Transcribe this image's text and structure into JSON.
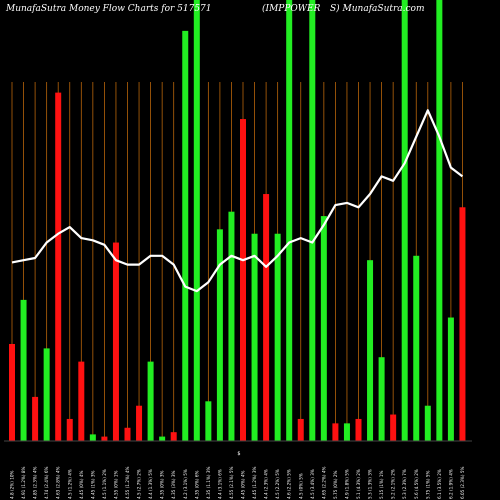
{
  "header": {
    "left": "MunafaSutra  Money Flow  Charts for 517571",
    "right": "(IMPPOWER",
    "site": "S) MunafaSutra.com"
  },
  "colors": {
    "background": "#000000",
    "up": "#22ee22",
    "down": "#ff1111",
    "gridline": "#b8650a",
    "line": "#ffffff"
  },
  "chart_data": {
    "type": "bar",
    "title": "MunafaSutra  Money Flow  Charts for 517571 (IMPPOWERS) MunafaSutra.com",
    "ylim": [
      0,
      100
    ],
    "grid": true,
    "center_label": "$",
    "bars": [
      {
        "label": "4.8 (2%) 10%",
        "value": 22,
        "dir": "down"
      },
      {
        "label": "4.91 (1.2%) 8%",
        "value": 32,
        "dir": "up"
      },
      {
        "label": "4.85 (2.3%) 4%",
        "value": 10,
        "dir": "down"
      },
      {
        "label": "4.74 (2.4%) 6%",
        "value": 21,
        "dir": "up"
      },
      {
        "label": "4.63 (2.8%) 4%",
        "value": 79,
        "dir": "down"
      },
      {
        "label": "4.5 (1.2%) 4%",
        "value": 5,
        "dir": "down"
      },
      {
        "label": "4.45 (0%) 4%",
        "value": 18,
        "dir": "down"
      },
      {
        "label": "4.45 (1%) 3%",
        "value": 1.5,
        "dir": "up"
      },
      {
        "label": "4.5 (1.1%) 2%",
        "value": 1,
        "dir": "down"
      },
      {
        "label": "4.55 (0%) 1%",
        "value": 45,
        "dir": "down"
      },
      {
        "label": "4.55 (1.2%) 4%",
        "value": 3,
        "dir": "down"
      },
      {
        "label": "4.5 (2.7%) 2%",
        "value": 8,
        "dir": "down"
      },
      {
        "label": "4.4 (1.3%) 5%",
        "value": 18,
        "dir": "up"
      },
      {
        "label": "4.35 (0%) 3%",
        "value": 1,
        "dir": "up"
      },
      {
        "label": "4.35 (3%) 3%",
        "value": 2,
        "dir": "down"
      },
      {
        "label": "4.2 (3.1%) 5%",
        "value": 93,
        "dir": "up"
      },
      {
        "label": "4.35 (0%) 6%",
        "value": 100,
        "dir": "up"
      },
      {
        "label": "4.35 (1.1%) 3%",
        "value": 9,
        "dir": "up"
      },
      {
        "label": "4.4 (3.1%) 6%",
        "value": 48,
        "dir": "up"
      },
      {
        "label": "4.55 (2.1%) 5%",
        "value": 52,
        "dir": "up"
      },
      {
        "label": "4.45 (0%) 4%",
        "value": 73,
        "dir": "down"
      },
      {
        "label": "4.45 (1.2%) 3%",
        "value": 47,
        "dir": "up"
      },
      {
        "label": "4.4 (2.3%) 4%",
        "value": 56,
        "dir": "down"
      },
      {
        "label": "4.5 (2.2%) 5%",
        "value": 47,
        "dir": "up"
      },
      {
        "label": "4.6 (2.2%) 5%",
        "value": 100,
        "dir": "up"
      },
      {
        "label": "4.5 (0%) 5%",
        "value": 5,
        "dir": "down"
      },
      {
        "label": "4.5 (3.4%) 3%",
        "value": 100,
        "dir": "up"
      },
      {
        "label": "4.65 (2.2%) 4%",
        "value": 51,
        "dir": "up"
      },
      {
        "label": "5.75 (0%) 2%",
        "value": 4,
        "dir": "down"
      },
      {
        "label": "4.9 (1.8%) 5%",
        "value": 4,
        "dir": "up"
      },
      {
        "label": "5.1 (4.3%) 2%",
        "value": 5,
        "dir": "down"
      },
      {
        "label": "5.3 (1.3%) 3%",
        "value": 41,
        "dir": "up"
      },
      {
        "label": "5.15 (1%) 1%",
        "value": 19,
        "dir": "up"
      },
      {
        "label": "5.2 (2.1%) 2%",
        "value": 6,
        "dir": "down"
      },
      {
        "label": "5.3 (2.3%) 7%",
        "value": 100,
        "dir": "up"
      },
      {
        "label": "5.6 (4.5%) 2%",
        "value": 42,
        "dir": "up"
      },
      {
        "label": "5.75 (1%) 5%",
        "value": 8,
        "dir": "up"
      },
      {
        "label": "6.1 (3.5%) 2%",
        "value": 100,
        "dir": "up"
      },
      {
        "label": "6.2 (1.9%) 4%",
        "value": 28,
        "dir": "up"
      },
      {
        "label": "6.05 (2.3%) 5%",
        "value": 53,
        "dir": "down"
      }
    ],
    "line": [
      40.5,
      41,
      41.5,
      45,
      47,
      48.5,
      46,
      45.5,
      44.5,
      41,
      40,
      40,
      42,
      42,
      40,
      35,
      34,
      36,
      40,
      42,
      41,
      42,
      39.5,
      42,
      45,
      46,
      45,
      49,
      53.5,
      54,
      53,
      56,
      60,
      59,
      63,
      69,
      75,
      69,
      62,
      60
    ]
  }
}
